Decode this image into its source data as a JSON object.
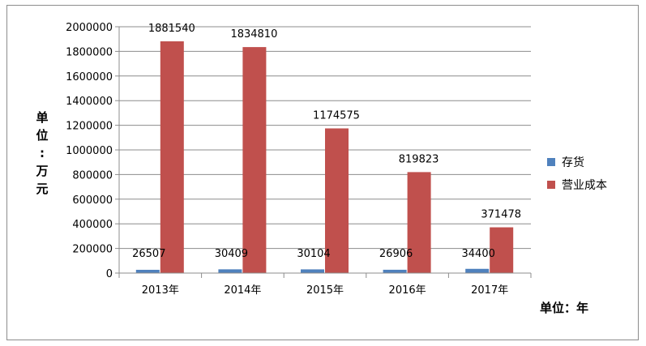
{
  "chart_data": {
    "type": "bar",
    "categories": [
      "2013年",
      "2014年",
      "2015年",
      "2016年",
      "2017年"
    ],
    "series": [
      {
        "name": "存货",
        "values": [
          26507,
          30409,
          30104,
          26906,
          34400
        ],
        "color": "#4f81bd"
      },
      {
        "name": "营业成本",
        "values": [
          1881540,
          1834810,
          1174575,
          819823,
          371478
        ],
        "color": "#c0504d"
      }
    ],
    "title": "",
    "xlabel": "单位：年",
    "ylabel": "单位：万元",
    "ylim": [
      0,
      2000000
    ],
    "yticks": [
      0,
      200000,
      400000,
      600000,
      800000,
      1000000,
      1200000,
      1400000,
      1600000,
      1800000,
      2000000
    ],
    "grid": true,
    "legend_position": "right"
  }
}
